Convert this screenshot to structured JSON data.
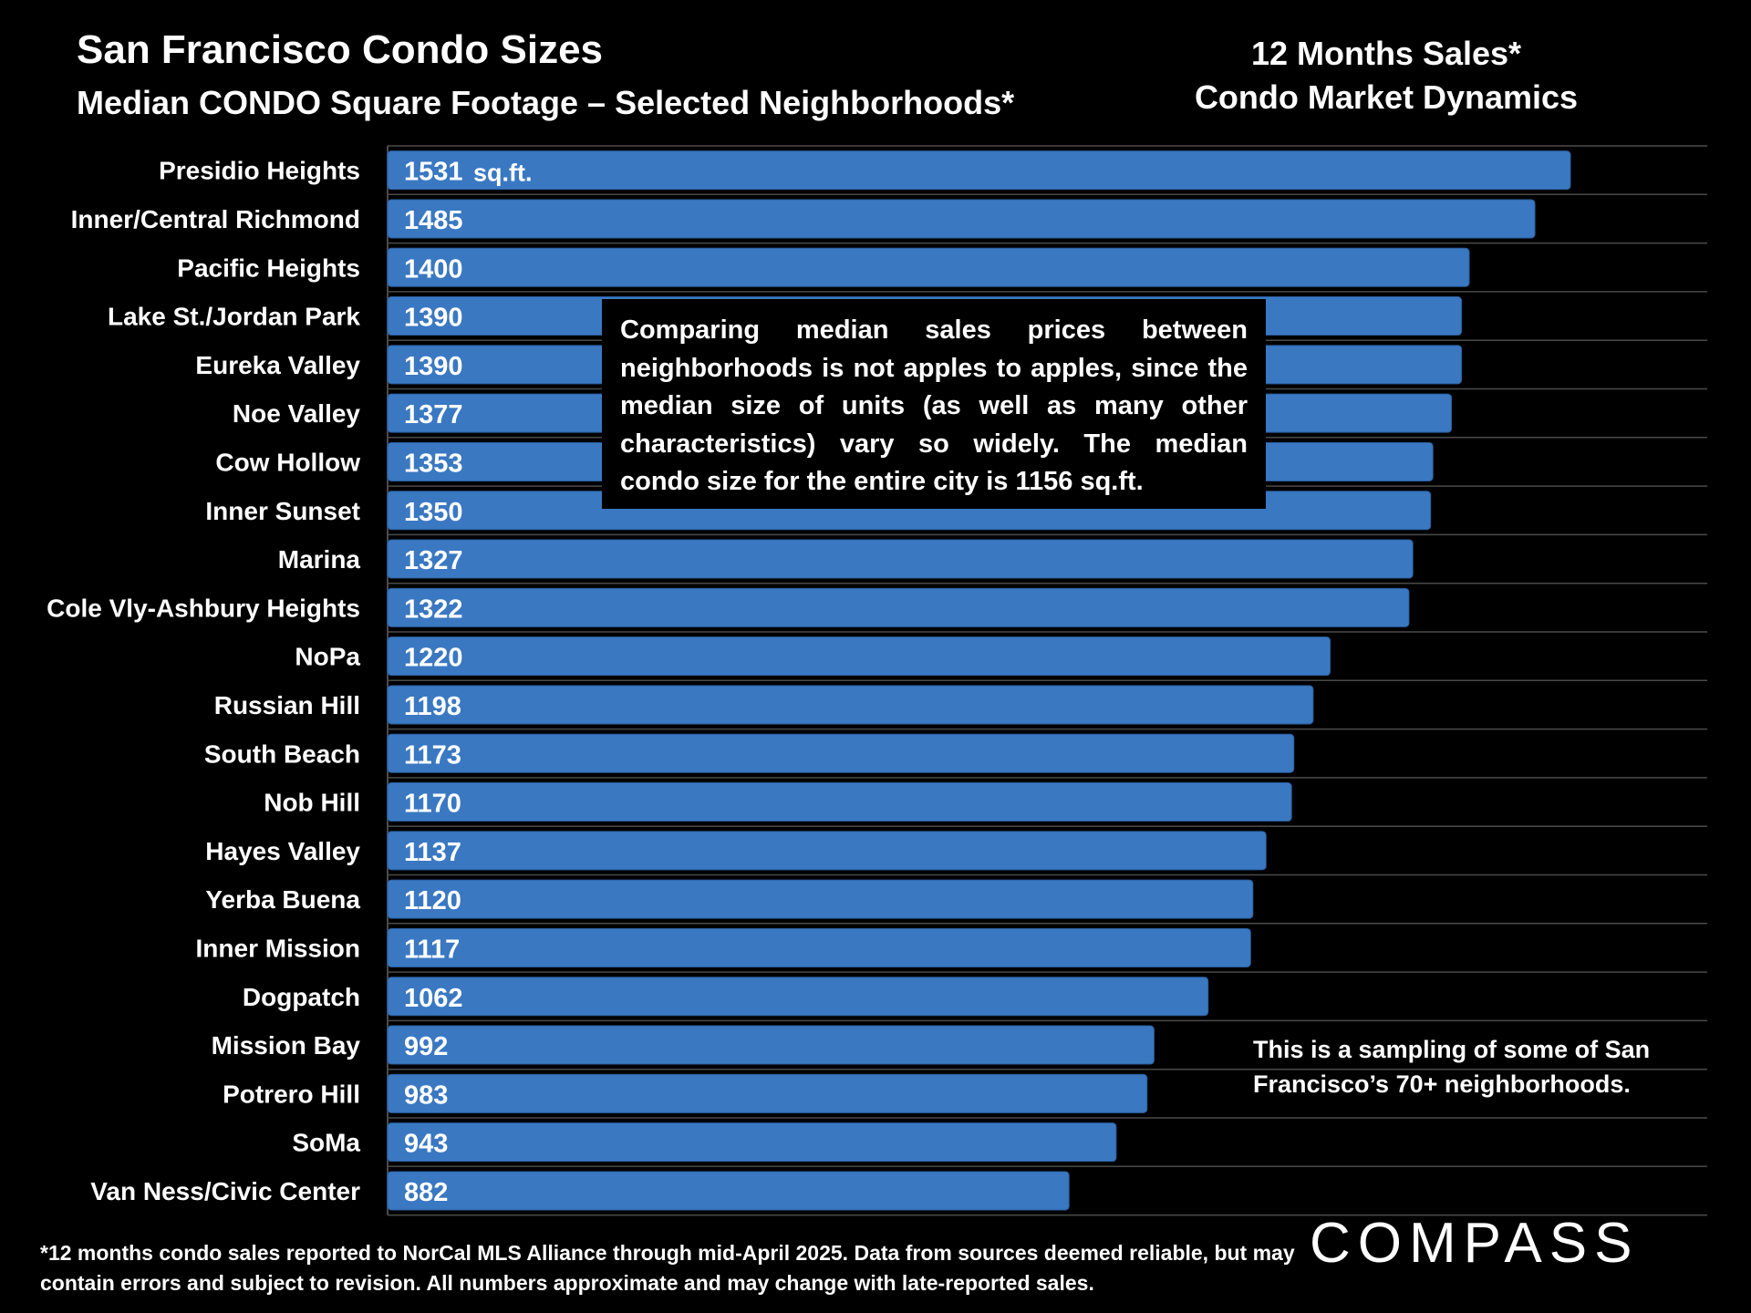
{
  "header": {
    "title": "San Francisco Condo Sizes",
    "subtitle": "Median CONDO Square Footage – Selected Neighborhoods*",
    "right_line1": "12 Months Sales*",
    "right_line2": "Condo Market Dynamics"
  },
  "callout_text": "Comparing median sales prices between neighborhoods is not apples to apples, since the median size of units (as well as many other characteristics) vary so widely. The median condo size for the entire city is 1156 sq.ft.",
  "note_text": "This is a sampling of some of San Francisco’s 70+ neighborhoods.",
  "footnote": "*12 months condo sales reported to NorCal MLS Alliance through mid-April 2025. Data from sources deemed reliable, but may contain errors and subject to revision. All numbers approximate and may change with late-reported sales.",
  "logo_text": "COMPASS",
  "colors": {
    "bar": "#3a78c2",
    "bar_edge": "#2a5f9e",
    "grid": "#4a4a4a",
    "background": "#000000"
  },
  "chart_data": {
    "type": "bar",
    "orientation": "horizontal",
    "unit_label": "sq.ft.",
    "grid": true,
    "xlim": [
      0,
      1650
    ],
    "categories": [
      "Presidio Heights",
      "Inner/Central Richmond",
      "Pacific Heights",
      "Lake St./Jordan Park",
      "Eureka Valley",
      "Noe Valley",
      "Cow Hollow",
      "Inner Sunset",
      "Marina",
      "Cole Vly-Ashbury Heights",
      "NoPa",
      "Russian Hill",
      "South Beach",
      "Nob Hill",
      "Hayes Valley",
      "Yerba Buena",
      "Inner Mission",
      "Dogpatch",
      "Mission Bay",
      "Potrero Hill",
      "SoMa",
      "Van Ness/Civic Center"
    ],
    "values": [
      1531,
      1485,
      1400,
      1390,
      1390,
      1377,
      1353,
      1350,
      1327,
      1322,
      1220,
      1198,
      1173,
      1170,
      1137,
      1120,
      1117,
      1062,
      992,
      983,
      943,
      882
    ]
  }
}
